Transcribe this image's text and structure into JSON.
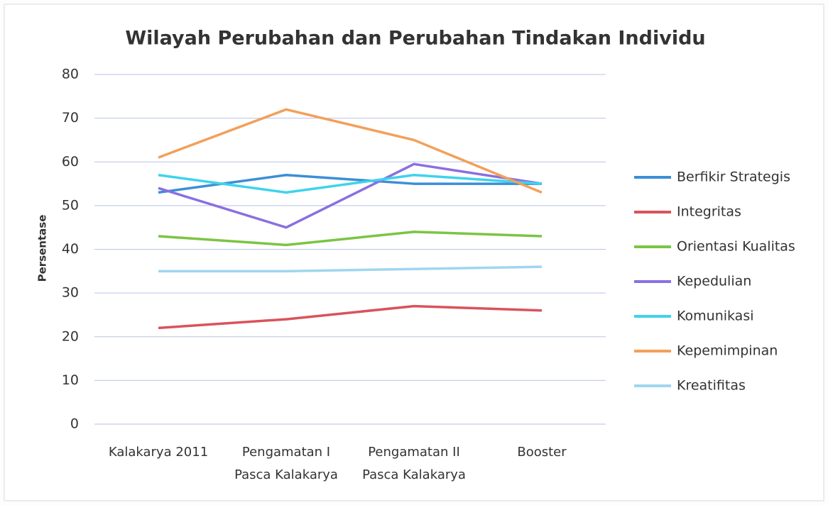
{
  "chart_data": {
    "type": "line",
    "title": "Wilayah Perubahan dan Perubahan Tindakan Individu",
    "ylabel": "Persentase",
    "categories": [
      "Kalakarya 2011",
      "Pengamatan I\nPasca Kalakarya",
      "Pengamatan II\nPasca Kalakarya",
      "Booster"
    ],
    "series": [
      {
        "name": "Berfikir Strategis",
        "color": "#3b8fd6",
        "values": [
          53,
          57,
          55,
          55
        ]
      },
      {
        "name": "Integritas",
        "color": "#d9535b",
        "values": [
          22,
          24,
          27,
          26
        ]
      },
      {
        "name": "Orientasi Kualitas",
        "color": "#7cc444",
        "values": [
          43,
          41,
          44,
          43
        ]
      },
      {
        "name": "Kepedulian",
        "color": "#8a6fe0",
        "values": [
          54,
          45,
          59.5,
          55
        ]
      },
      {
        "name": "Komunikasi",
        "color": "#3fd3ec",
        "values": [
          57,
          53,
          57,
          55
        ]
      },
      {
        "name": "Kepemimpinan",
        "color": "#f2a05a",
        "values": [
          61,
          72,
          65,
          53
        ]
      },
      {
        "name": "Kreatifitas",
        "color": "#9fd6ef",
        "values": [
          35,
          35,
          35.5,
          36
        ]
      }
    ],
    "ylim": [
      0,
      80
    ],
    "yticks": [
      0,
      10,
      20,
      30,
      40,
      50,
      60,
      70,
      80
    ],
    "grid": true,
    "legend": "right"
  }
}
